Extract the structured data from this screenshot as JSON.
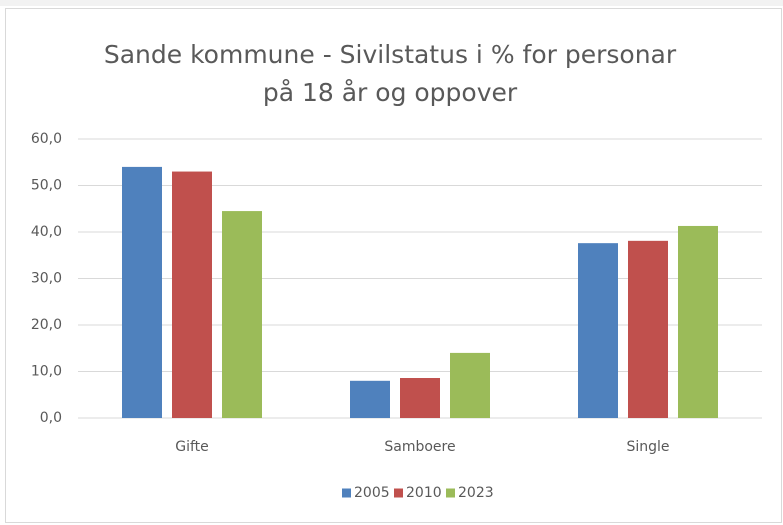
{
  "chart_data": {
    "type": "bar",
    "title": "Sande kommune - Sivilstatus i % for personar på 18 år og oppover",
    "categories": [
      "Gifte",
      "Samboere",
      "Single"
    ],
    "series": [
      {
        "name": "2005",
        "color": "#4f81bd",
        "values": [
          54.0,
          8.0,
          37.6
        ]
      },
      {
        "name": "2010",
        "color": "#c0504d",
        "values": [
          53.0,
          8.6,
          38.1
        ]
      },
      {
        "name": "2023",
        "color": "#9bbb59",
        "values": [
          44.5,
          14.0,
          41.3
        ]
      }
    ],
    "ylim": [
      0,
      60
    ],
    "yticks": [
      {
        "value": 0,
        "label": "0,0"
      },
      {
        "value": 10,
        "label": "10,0"
      },
      {
        "value": 20,
        "label": "20,0"
      },
      {
        "value": 30,
        "label": "30,0"
      },
      {
        "value": 40,
        "label": "40,0"
      },
      {
        "value": 50,
        "label": "50,0"
      },
      {
        "value": 60,
        "label": "60,0"
      }
    ],
    "grid": true,
    "legend": "bottom"
  }
}
